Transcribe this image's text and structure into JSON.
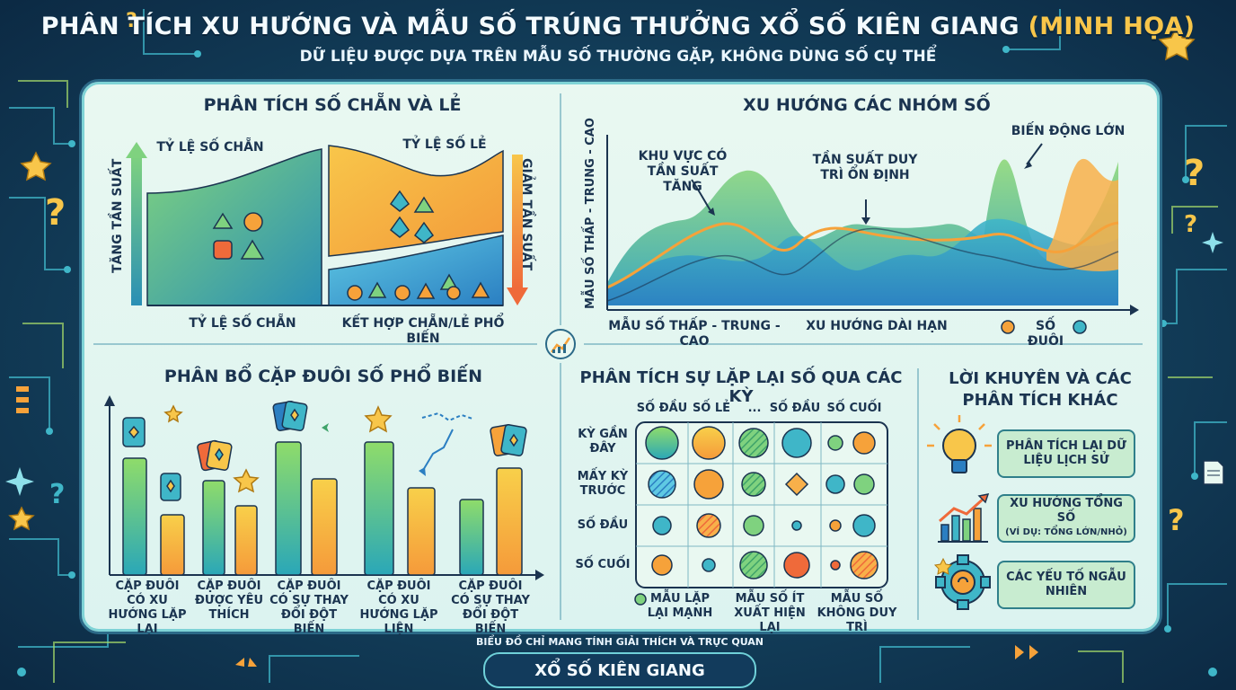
{
  "header": {
    "title": "PHÂN TÍCH XU HƯỚNG VÀ MẪU SỐ TRÚNG THƯỞNG XỔ SỐ KIÊN GIANG",
    "title_highlight": "(MINH HỌA)",
    "subtitle": "DỮ LIỆU ĐƯỢC DỰA TRÊN MẪU SỐ THƯỜNG GẶP, KHÔNG DÙNG SỐ CỤ THỂ"
  },
  "even_odd": {
    "title": "PHÂN TÍCH SỐ CHẴN VÀ LẺ",
    "left_axis": "TĂNG TẦN SUẤT",
    "right_axis": "GIẢM TẦN SUẤT",
    "even_ratio_label": "TỶ LỆ SỐ CHẴN",
    "odd_ratio_label": "TỶ LỆ SỐ LẺ",
    "even_bottom_label": "TỶ LỆ SỐ CHẴN",
    "combo_label": "KẾT HỢP CHẴN/LẺ PHỔ BIẾN"
  },
  "groups": {
    "title": "XU HƯỚNG CÁC NHÓM SỐ",
    "y_axis": "MẪU SỐ THẤP - TRUNG - CAO",
    "x_label_left": "MẪU SỐ THẤP - TRUNG - CAO",
    "x_label_mid": "XU HƯỚNG DÀI HẠN",
    "legend": "SỐ ĐUÔI",
    "ann_increase": "KHU VỰC CÓ TẦN SUẤT TĂNG",
    "ann_stable": "TẦN SUẤT DUY TRÌ ỔN ĐỊNH",
    "ann_volatile": "BIẾN ĐỘNG LỚN"
  },
  "pairs": {
    "title": "PHÂN BỔ CẶP ĐUÔI SỐ PHỔ BIẾN",
    "groups": [
      {
        "label": "CẶP ĐUÔI CÓ XU HƯỚNG LẶP LẠI"
      },
      {
        "label": "CẶP ĐUÔI ĐƯỢC YÊU THÍCH"
      },
      {
        "label": "CẶP ĐUÔI CÓ SỰ THAY ĐỔI ĐỘT BIẾN"
      },
      {
        "label": "CẶP ĐUÔI CÓ XU HƯỚNG LẶP LIỆN"
      },
      {
        "label": "CẶP ĐUÔI CÓ SỰ THAY ĐỔI ĐỘT BIẾN"
      }
    ]
  },
  "repeat": {
    "title": "PHÂN TÍCH SỰ LẶP LẠI SỐ QUA CÁC KỲ",
    "columns": [
      "SỐ ĐẦU",
      "SỐ LẺ",
      "...",
      "SỐ ĐẦU",
      "SỐ CUỐI"
    ],
    "rows": [
      "KỲ GẦN ĐÂY",
      "MẤY KỲ TRƯỚC",
      "SỐ ĐẦU",
      "SỐ CUỐI"
    ],
    "legend": [
      "MẪU LẶP LẠI MẠNH",
      "MẪU SỐ ÍT XUẤT HIỆN LẠI",
      "MẪU SỐ KHÔNG DUY TRÌ"
    ]
  },
  "advice": {
    "title": "LỜI KHUYÊN VÀ CÁC PHÂN TÍCH KHÁC",
    "items": [
      {
        "label": "PHÂN TÍCH LẠI DỮ LIỆU LỊCH SỬ",
        "icon": "lightbulb-icon"
      },
      {
        "label": "XU HƯỚNG TỔNG SỐ",
        "sub": "(VÍ DỤ: TỔNG LỚN/NHỎ)",
        "icon": "growth-chart-icon"
      },
      {
        "label": "CÁC YẾU TỐ NGẪU NHIÊN",
        "icon": "gear-icon"
      }
    ]
  },
  "footer": {
    "note": "BIỂU ĐỒ CHỈ MANG TÍNH GIẢI THÍCH VÀ TRỰC QUAN",
    "brand": "XỔ SỐ KIÊN GIANG"
  },
  "colors": {
    "panel_border": "#2c6a88",
    "green": "#7fd27f",
    "teal": "#2fa3b8",
    "orange": "#f6a23a",
    "yellow": "#f8c64a",
    "dark_text": "#1b3450"
  }
}
